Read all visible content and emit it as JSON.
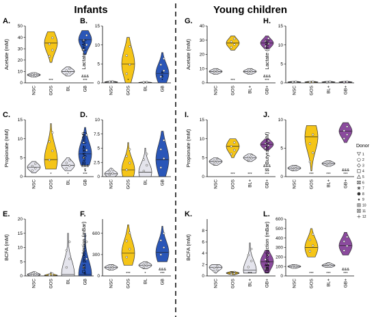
{
  "sections": {
    "left": "Infants",
    "right": "Young children"
  },
  "colors": {
    "control": "#e4e4ec",
    "gos": "#f5c518",
    "gb_inf": "#2a56b8",
    "gb_yc": "#8b4a9e",
    "outline": "#333333"
  },
  "legend": {
    "title": "Donor",
    "items": [
      {
        "label": "1",
        "shape": "tri-down"
      },
      {
        "label": "2",
        "shape": "circle"
      },
      {
        "label": "3",
        "shape": "diamond"
      },
      {
        "label": "4",
        "shape": "square"
      },
      {
        "label": "5",
        "shape": "triangle"
      },
      {
        "label": "6",
        "shape": "square-x"
      },
      {
        "label": "7",
        "shape": "star"
      },
      {
        "label": "8",
        "shape": "dot"
      },
      {
        "label": "9",
        "shape": "small-dot"
      },
      {
        "label": "10",
        "shape": "square-plus"
      },
      {
        "label": "11",
        "shape": "hourglass"
      },
      {
        "label": "12",
        "shape": "plus"
      }
    ]
  },
  "chart_data": [
    {
      "type": "violin",
      "panel": "A.",
      "group": "Infants",
      "ylabel": "Acetate (mM)",
      "ylim": [
        0,
        50
      ],
      "yticks": [
        0,
        10,
        20,
        30,
        40,
        50
      ],
      "categories": [
        "NSC",
        "GOS",
        "BL",
        "GB"
      ],
      "medians": [
        7,
        35,
        10,
        38
      ],
      "ranges": [
        [
          5,
          9
        ],
        [
          18,
          45
        ],
        [
          6,
          14
        ],
        [
          25,
          46
        ]
      ],
      "annotations": [
        "",
        "***",
        "",
        "&&&\n***"
      ]
    },
    {
      "type": "violin",
      "panel": "B.",
      "group": "Infants",
      "ylabel": "Lactate (mM)",
      "ylim": [
        0,
        15
      ],
      "yticks": [
        0,
        5,
        10,
        15
      ],
      "categories": [
        "NSC",
        "GOS",
        "BL",
        "GB"
      ],
      "medians": [
        0.2,
        5,
        0.1,
        2.5
      ],
      "ranges": [
        [
          0,
          0.5
        ],
        [
          0,
          12
        ],
        [
          0,
          0.3
        ],
        [
          0,
          8
        ]
      ],
      "annotations": [
        "",
        "*",
        "",
        "&\n$\n*"
      ]
    },
    {
      "type": "violin",
      "panel": "C.",
      "group": "Infants",
      "ylabel": "Propionate (mM)",
      "ylim": [
        0,
        15
      ],
      "yticks": [
        0,
        5,
        10,
        15
      ],
      "categories": [
        "NSC",
        "GOS",
        "BL",
        "GB"
      ],
      "medians": [
        2.5,
        4.5,
        3,
        6
      ],
      "ranges": [
        [
          1,
          4
        ],
        [
          2,
          14
        ],
        [
          1.5,
          5
        ],
        [
          3,
          13
        ]
      ],
      "annotations": [
        "",
        "*",
        "*",
        "&&&\n$\n***"
      ]
    },
    {
      "type": "violin",
      "panel": "D.",
      "group": "Infants",
      "ylabel": "Butyrate (mM)",
      "ylim": [
        0,
        10
      ],
      "yticks": [
        0,
        2.5,
        5,
        7.5,
        10
      ],
      "categories": [
        "NSC",
        "GOS",
        "BL",
        "GB"
      ],
      "medians": [
        0.5,
        1.2,
        0.8,
        3
      ],
      "ranges": [
        [
          0,
          1.5
        ],
        [
          0,
          6
        ],
        [
          0,
          5
        ],
        [
          0,
          8
        ]
      ],
      "annotations": [
        "",
        "",
        "",
        ""
      ]
    },
    {
      "type": "violin",
      "panel": "E.",
      "group": "Infants",
      "ylabel": "BCFA (mM)",
      "ylim": [
        0,
        20
      ],
      "yticks": [
        0,
        5,
        10,
        15,
        20
      ],
      "categories": [
        "NSC",
        "GOS",
        "BL",
        "GB"
      ],
      "medians": [
        0.5,
        0.2,
        0.5,
        0.5
      ],
      "ranges": [
        [
          0,
          1.5
        ],
        [
          0,
          1
        ],
        [
          0,
          15
        ],
        [
          0,
          15
        ]
      ],
      "annotations": [
        "",
        "*",
        "",
        "&"
      ]
    },
    {
      "type": "violin",
      "panel": "F.",
      "group": "Infants",
      "ylabel": "Gas production (mBar)",
      "ylim": [
        0,
        800
      ],
      "yticks": [
        0,
        300,
        600
      ],
      "categories": [
        "NSC",
        "GOS",
        "BL",
        "GB"
      ],
      "medians": [
        120,
        320,
        150,
        330
      ],
      "ranges": [
        [
          80,
          160
        ],
        [
          150,
          720
        ],
        [
          100,
          200
        ],
        [
          200,
          700
        ]
      ],
      "annotations": [
        "",
        "***",
        "*",
        "&&&\n***"
      ]
    },
    {
      "type": "violin",
      "panel": "G.",
      "group": "Young children",
      "ylabel": "Acetate (mM)",
      "ylim": [
        0,
        40
      ],
      "yticks": [
        0,
        10,
        20,
        30,
        40
      ],
      "categories": [
        "NSC",
        "GOS",
        "BL+",
        "GB+"
      ],
      "medians": [
        8,
        28,
        8,
        28
      ],
      "ranges": [
        [
          6,
          10
        ],
        [
          23,
          33
        ],
        [
          6,
          10
        ],
        [
          24,
          33
        ]
      ],
      "annotations": [
        "",
        "***",
        "",
        "&&&\n***"
      ]
    },
    {
      "type": "violin",
      "panel": "H.",
      "group": "Young children",
      "ylabel": "Lactate (mM)",
      "ylim": [
        0,
        15
      ],
      "yticks": [
        0,
        5,
        10,
        15
      ],
      "categories": [
        "NSC",
        "GOS",
        "BL+",
        "GB+"
      ],
      "medians": [
        0.2,
        0.2,
        0.2,
        0.2
      ],
      "ranges": [
        [
          0,
          0.4
        ],
        [
          0,
          0.4
        ],
        [
          0,
          0.4
        ],
        [
          0,
          0.4
        ]
      ],
      "annotations": [
        "",
        "",
        "",
        ""
      ]
    },
    {
      "type": "violin",
      "panel": "I.",
      "group": "Young children",
      "ylabel": "Propionate (mM)",
      "ylim": [
        0,
        15
      ],
      "yticks": [
        0,
        5,
        10,
        15
      ],
      "categories": [
        "NSC",
        "GOS",
        "BL+",
        "GB+"
      ],
      "medians": [
        4,
        8,
        5,
        8.5
      ],
      "ranges": [
        [
          3,
          5
        ],
        [
          5,
          10
        ],
        [
          4,
          6
        ],
        [
          7,
          10
        ]
      ],
      "annotations": [
        "",
        "***",
        "***",
        "&&&\n$$\n***"
      ]
    },
    {
      "type": "violin",
      "panel": "J.",
      "group": "Young children",
      "ylabel": "Butyrate (mM)",
      "ylim": [
        0,
        10
      ],
      "yticks": [
        0,
        5,
        10
      ],
      "categories": [
        "NSC",
        "GOS",
        "BL+",
        "GB+"
      ],
      "medians": [
        1.5,
        7,
        2.3,
        8
      ],
      "ranges": [
        [
          1,
          2
        ],
        [
          1,
          9
        ],
        [
          1.8,
          2.8
        ],
        [
          6,
          9.5
        ]
      ],
      "annotations": [
        "",
        "***",
        "***",
        "&&&\n***"
      ]
    },
    {
      "type": "violin",
      "panel": "K.",
      "group": "Young children",
      "ylabel": "BCFA (mM)",
      "ylim": [
        0,
        10
      ],
      "yticks": [
        0,
        2,
        4,
        6,
        8
      ],
      "categories": [
        "NSC",
        "GOS",
        "BL+",
        "GB+"
      ],
      "medians": [
        1.5,
        0.5,
        1,
        2.5
      ],
      "ranges": [
        [
          0.5,
          2
        ],
        [
          0.2,
          0.8
        ],
        [
          0.5,
          5.8
        ],
        [
          0.5,
          4.5
        ]
      ],
      "annotations": [
        "",
        "***",
        "***",
        "&&\n$$\n*"
      ]
    },
    {
      "type": "violin",
      "panel": "L.",
      "group": "Young children",
      "ylabel": "Gas production (mBar)",
      "ylim": [
        0,
        600
      ],
      "yticks": [
        0,
        100,
        200,
        300,
        400,
        500,
        600
      ],
      "categories": [
        "NSC",
        "GOS",
        "BL+",
        "GB+"
      ],
      "medians": [
        100,
        300,
        110,
        320
      ],
      "ranges": [
        [
          80,
          120
        ],
        [
          200,
          500
        ],
        [
          90,
          140
        ],
        [
          220,
          460
        ]
      ],
      "annotations": [
        "",
        "***",
        "***",
        "&&&\n***"
      ]
    }
  ]
}
